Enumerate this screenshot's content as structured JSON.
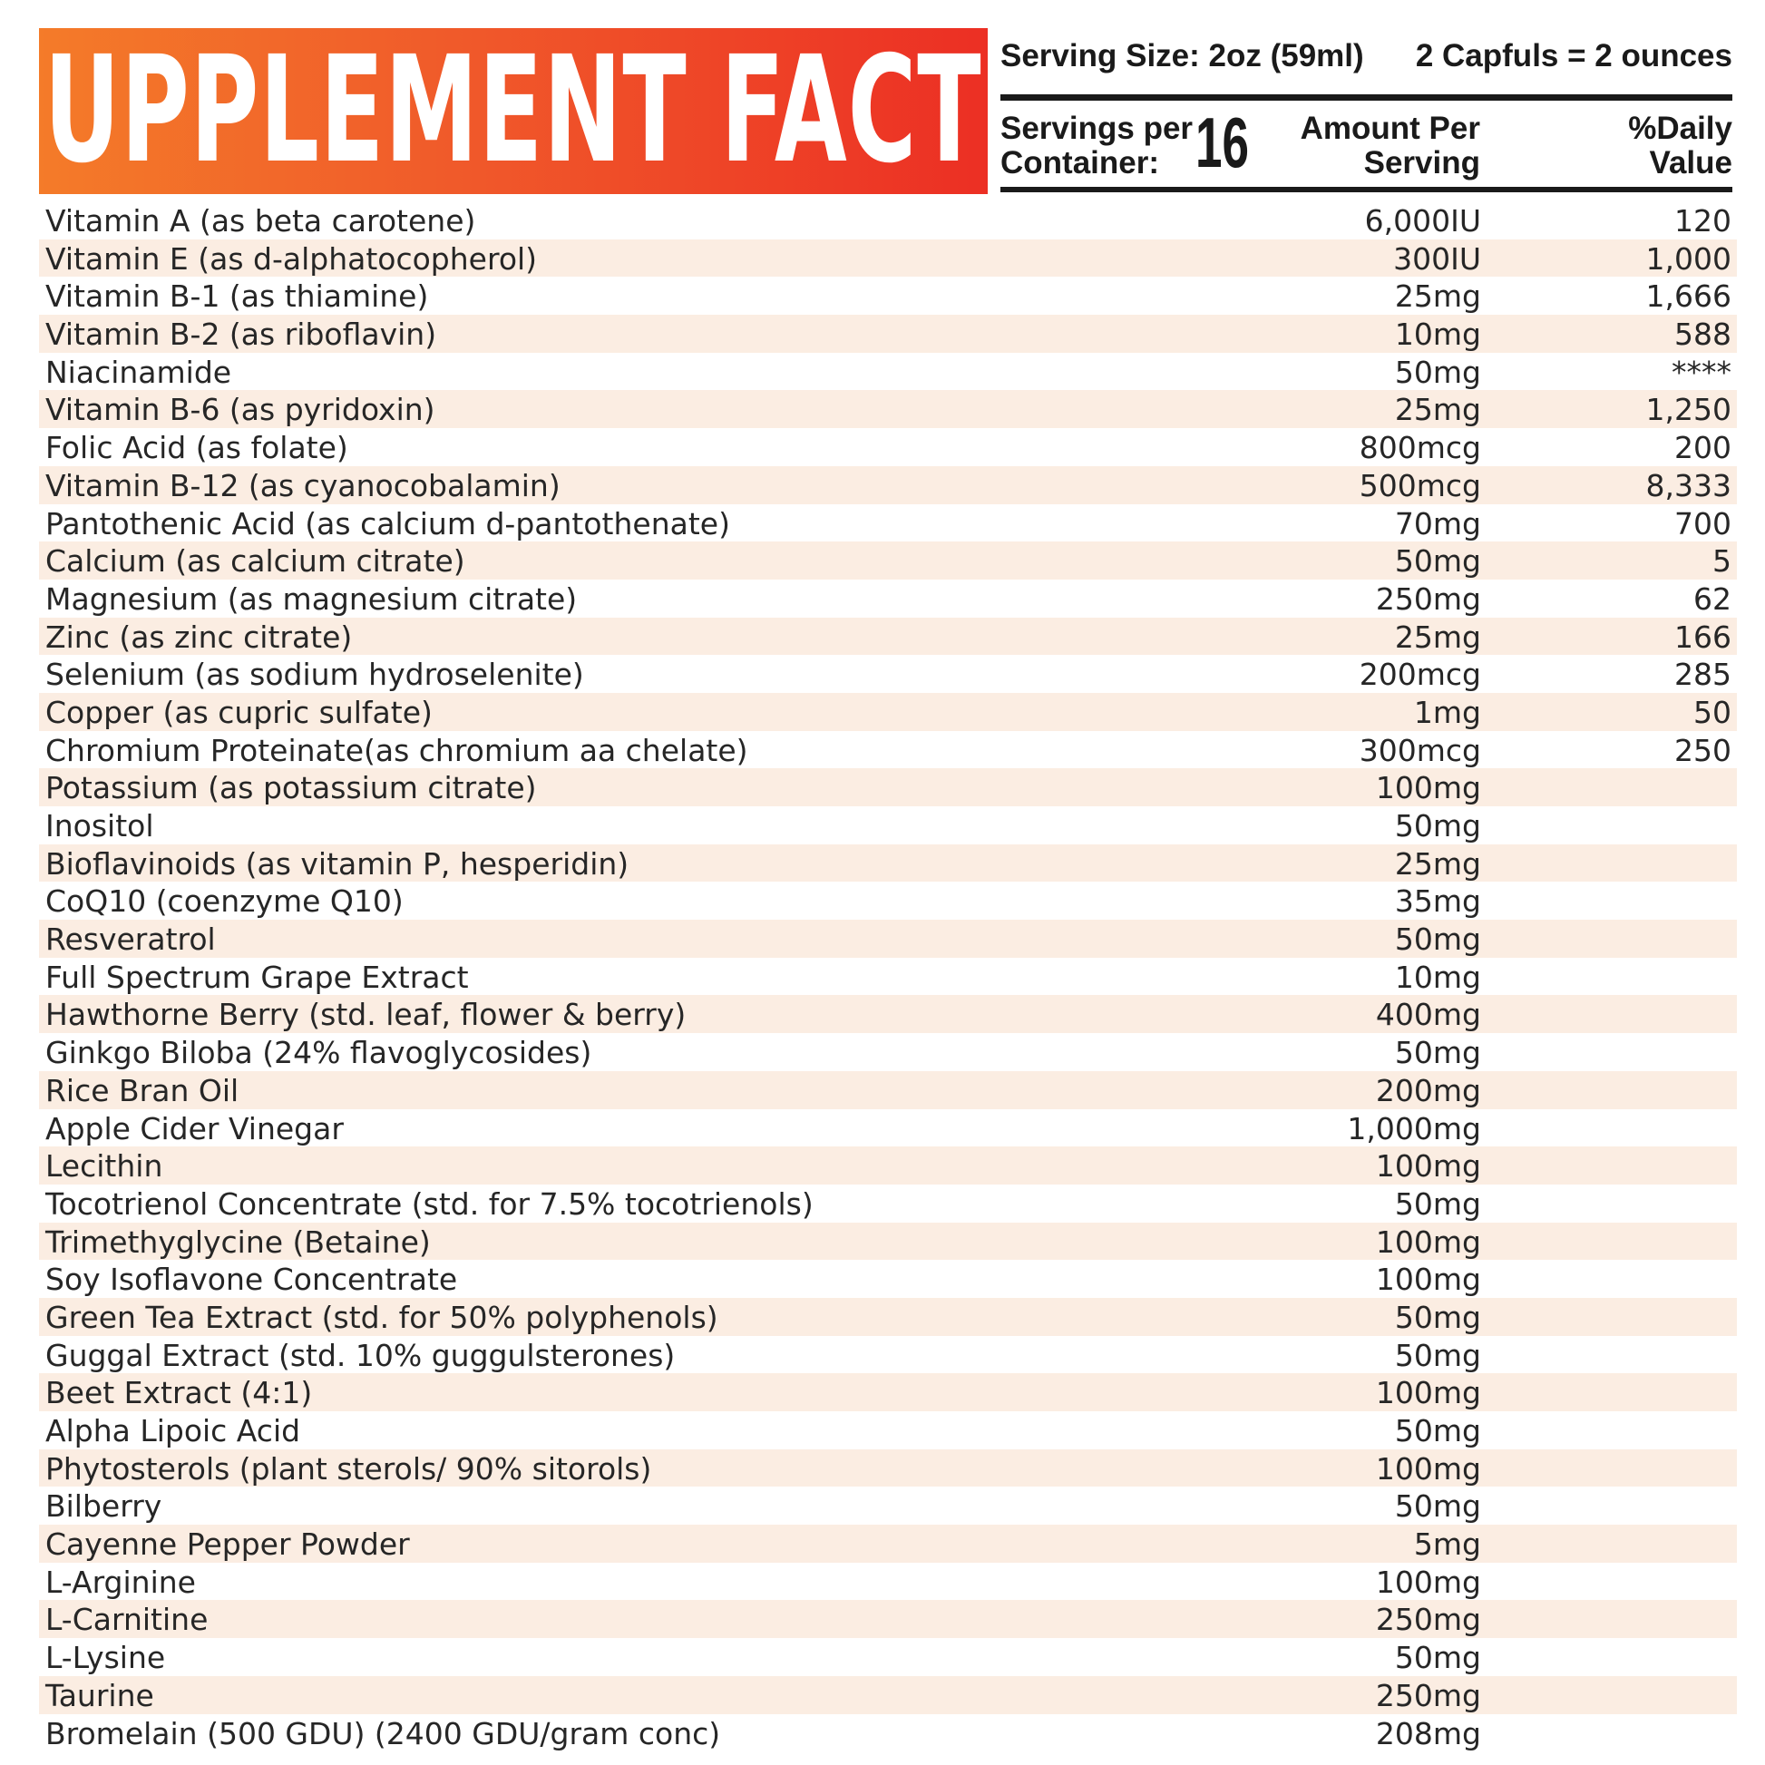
{
  "title": "SUPPLEMENT FACTS",
  "header": {
    "serving_size": "Serving Size: 2oz (59ml)",
    "capfuls": "2 Capfuls = 2 ounces",
    "servings_label_1": "Servings per",
    "servings_label_2": "Container:",
    "servings_count": "16",
    "amount_label_1": "Amount Per",
    "amount_label_2": "Serving",
    "dv_label_1": "%Daily",
    "dv_label_2": "Value"
  },
  "colors": {
    "banner_start": "#f47b29",
    "banner_end": "#ec2f24",
    "row_stripe": "#fbede2"
  },
  "rows": [
    {
      "name": "Vitamin A (as beta carotene)",
      "amount": "6,000IU",
      "dv": "120"
    },
    {
      "name": "Vitamin E (as d-alphatocopherol)",
      "amount": "300IU",
      "dv": "1,000"
    },
    {
      "name": "Vitamin B-1 (as thiamine)",
      "amount": "25mg",
      "dv": "1,666"
    },
    {
      "name": "Vitamin B-2 (as riboflavin)",
      "amount": "10mg",
      "dv": "588"
    },
    {
      "name": "Niacinamide",
      "amount": "50mg",
      "dv": "****"
    },
    {
      "name": "Vitamin B-6 (as pyridoxin)",
      "amount": "25mg",
      "dv": "1,250"
    },
    {
      "name": "Folic Acid (as folate)",
      "amount": "800mcg",
      "dv": "200"
    },
    {
      "name": "Vitamin B-12 (as cyanocobalamin)",
      "amount": "500mcg",
      "dv": "8,333"
    },
    {
      "name": "Pantothenic Acid (as calcium d-pantothenate)",
      "amount": "70mg",
      "dv": "700"
    },
    {
      "name": "Calcium (as calcium citrate)",
      "amount": "50mg",
      "dv": "5"
    },
    {
      "name": "Magnesium (as magnesium citrate)",
      "amount": "250mg",
      "dv": "62"
    },
    {
      "name": "Zinc (as zinc citrate)",
      "amount": "25mg",
      "dv": "166"
    },
    {
      "name": "Selenium (as sodium hydroselenite)",
      "amount": "200mcg",
      "dv": "285"
    },
    {
      "name": "Copper (as cupric sulfate)",
      "amount": "1mg",
      "dv": "50"
    },
    {
      "name": "Chromium Proteinate(as chromium aa chelate)",
      "amount": "300mcg",
      "dv": "250"
    },
    {
      "name": "Potassium (as potassium citrate)",
      "amount": "100mg",
      "dv": ""
    },
    {
      "name": "Inositol",
      "amount": "50mg",
      "dv": ""
    },
    {
      "name": "Bioflavinoids (as vitamin P, hesperidin)",
      "amount": "25mg",
      "dv": ""
    },
    {
      "name": "CoQ10 (coenzyme Q10)",
      "amount": "35mg",
      "dv": ""
    },
    {
      "name": "Resveratrol",
      "amount": "50mg",
      "dv": ""
    },
    {
      "name": "Full Spectrum Grape Extract",
      "amount": "10mg",
      "dv": ""
    },
    {
      "name": "Hawthorne Berry (std. leaf, flower & berry)",
      "amount": "400mg",
      "dv": ""
    },
    {
      "name": "Ginkgo Biloba (24% flavoglycosides)",
      "amount": "50mg",
      "dv": ""
    },
    {
      "name": "Rice Bran Oil",
      "amount": "200mg",
      "dv": ""
    },
    {
      "name": "Apple Cider Vinegar",
      "amount": "1,000mg",
      "dv": ""
    },
    {
      "name": "Lecithin",
      "amount": "100mg",
      "dv": ""
    },
    {
      "name": "Tocotrienol Concentrate (std. for 7.5% tocotrienols)",
      "amount": "50mg",
      "dv": ""
    },
    {
      "name": "Trimethyglycine (Betaine)",
      "amount": "100mg",
      "dv": ""
    },
    {
      "name": "Soy Isoflavone Concentrate",
      "amount": "100mg",
      "dv": ""
    },
    {
      "name": "Green Tea Extract (std. for 50% polyphenols)",
      "amount": "50mg",
      "dv": ""
    },
    {
      "name": "Guggal Extract (std. 10% guggulsterones)",
      "amount": "50mg",
      "dv": ""
    },
    {
      "name": "Beet Extract (4:1)",
      "amount": "100mg",
      "dv": ""
    },
    {
      "name": "Alpha Lipoic Acid",
      "amount": "50mg",
      "dv": ""
    },
    {
      "name": "Phytosterols (plant sterols/ 90% sitorols)",
      "amount": "100mg",
      "dv": ""
    },
    {
      "name": "Bilberry",
      "amount": "50mg",
      "dv": ""
    },
    {
      "name": "Cayenne Pepper Powder",
      "amount": "5mg",
      "dv": ""
    },
    {
      "name": "L-Arginine",
      "amount": "100mg",
      "dv": ""
    },
    {
      "name": "L-Carnitine",
      "amount": "250mg",
      "dv": ""
    },
    {
      "name": "L-Lysine",
      "amount": "50mg",
      "dv": ""
    },
    {
      "name": "Taurine",
      "amount": "250mg",
      "dv": ""
    },
    {
      "name": "Bromelain (500 GDU) (2400 GDU/gram conc)",
      "amount": "208mg",
      "dv": ""
    }
  ]
}
